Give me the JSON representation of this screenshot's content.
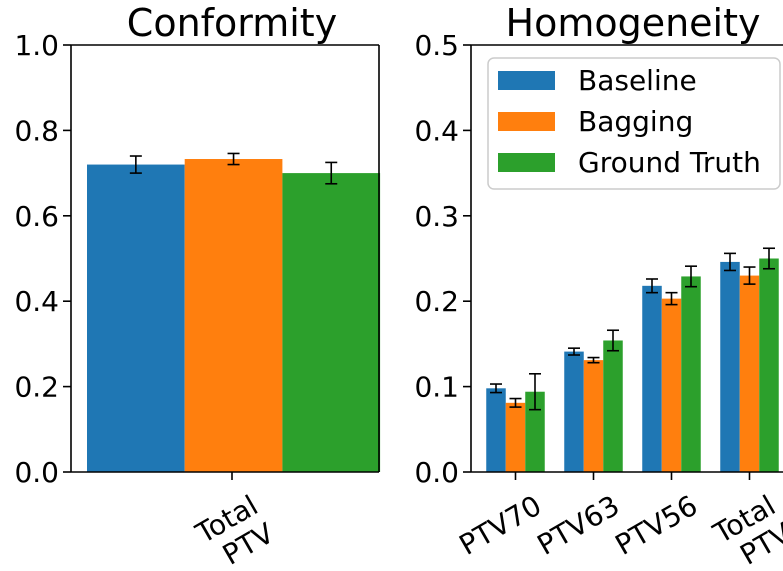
{
  "colors": {
    "baseline": "#1f77b4",
    "bagging": "#ff7f0e",
    "ground_truth": "#2ca02c",
    "axis": "#000000",
    "errorbar": "#000000"
  },
  "chart_data": [
    {
      "type": "bar",
      "title": "Conformity",
      "xlabel": "",
      "ylabel": "",
      "categories": [
        [
          "Total",
          "PTV"
        ]
      ],
      "series": [
        {
          "name": "Baseline",
          "color": "#1f77b4",
          "values": [
            0.72
          ],
          "errors": [
            0.02
          ]
        },
        {
          "name": "Bagging",
          "color": "#ff7f0e",
          "values": [
            0.733
          ],
          "errors": [
            0.013
          ]
        },
        {
          "name": "Ground Truth",
          "color": "#2ca02c",
          "values": [
            0.7
          ],
          "errors": [
            0.025
          ]
        }
      ],
      "ylim": [
        0,
        1.0
      ],
      "yticks": [
        "0.0",
        "0.2",
        "0.4",
        "0.6",
        "0.8",
        "1.0"
      ],
      "ytick_values": [
        0,
        0.2,
        0.4,
        0.6,
        0.8,
        1.0
      ],
      "grid": false,
      "legend": false
    },
    {
      "type": "bar",
      "title": "Homogeneity",
      "xlabel": "",
      "ylabel": "",
      "categories": [
        [
          "PTV70"
        ],
        [
          "PTV63"
        ],
        [
          "PTV56"
        ],
        [
          "Total",
          "PTV"
        ]
      ],
      "series": [
        {
          "name": "Baseline",
          "color": "#1f77b4",
          "values": [
            0.098,
            0.141,
            0.218,
            0.246
          ],
          "errors": [
            0.005,
            0.004,
            0.008,
            0.01
          ]
        },
        {
          "name": "Bagging",
          "color": "#ff7f0e",
          "values": [
            0.081,
            0.131,
            0.203,
            0.23
          ],
          "errors": [
            0.005,
            0.003,
            0.007,
            0.01
          ]
        },
        {
          "name": "Ground Truth",
          "color": "#2ca02c",
          "values": [
            0.094,
            0.154,
            0.229,
            0.25
          ],
          "errors": [
            0.021,
            0.012,
            0.012,
            0.012
          ]
        }
      ],
      "ylim": [
        0,
        0.5
      ],
      "yticks": [
        "0.0",
        "0.1",
        "0.2",
        "0.3",
        "0.4",
        "0.5"
      ],
      "ytick_values": [
        0,
        0.1,
        0.2,
        0.3,
        0.4,
        0.5
      ],
      "grid": false,
      "legend": true,
      "legend_position": "top-right",
      "legend_entries": [
        "Baseline",
        "Bagging",
        "Ground Truth"
      ]
    }
  ]
}
